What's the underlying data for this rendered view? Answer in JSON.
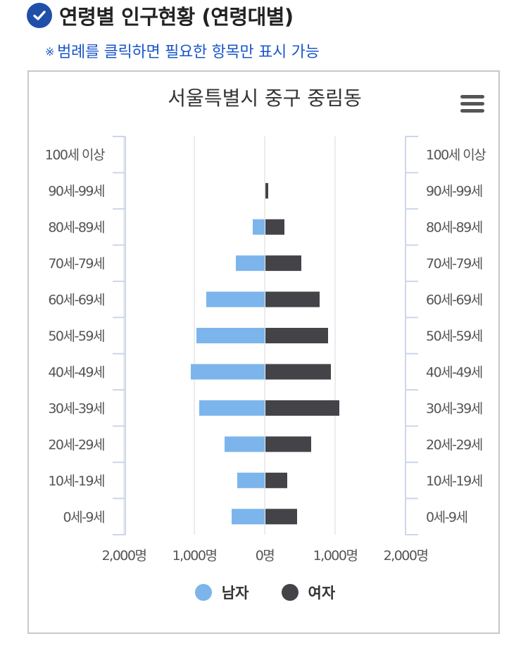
{
  "header": {
    "title": "연령별 인구현황 (연령대별)",
    "icon": "check-circle-icon"
  },
  "notice": {
    "mark": "※",
    "text": "범례를 클릭하면 필요한 항목만 표시 가능"
  },
  "menu": {
    "icon": "hamburger-menu-icon"
  },
  "colors": {
    "male": "#7cb5ec",
    "female": "#434348",
    "accent": "#1f4fa8"
  },
  "chart_data": {
    "type": "bar",
    "orientation": "horizontal-butterfly",
    "title": "서울특별시 중구 중림동",
    "categories": [
      "100세 이상",
      "90세-99세",
      "80세-89세",
      "70세-79세",
      "60세-69세",
      "50세-59세",
      "40세-49세",
      "30세-39세",
      "20세-29세",
      "10세-19세",
      "0세-9세"
    ],
    "series": [
      {
        "name": "남자",
        "color": "#7cb5ec",
        "values": [
          0,
          0,
          170,
          410,
          830,
          970,
          1050,
          930,
          570,
          390,
          470
        ]
      },
      {
        "name": "여자",
        "color": "#434348",
        "values": [
          0,
          40,
          270,
          510,
          770,
          890,
          930,
          1050,
          650,
          310,
          450
        ]
      }
    ],
    "xlim": [
      -2000,
      2000
    ],
    "xticks": [
      -2000,
      -1000,
      0,
      1000,
      2000
    ],
    "xtick_labels": [
      "2,000명",
      "1,000명",
      "0명",
      "1,000명",
      "2,000명"
    ],
    "grid": true,
    "legend": "bottom-center"
  }
}
